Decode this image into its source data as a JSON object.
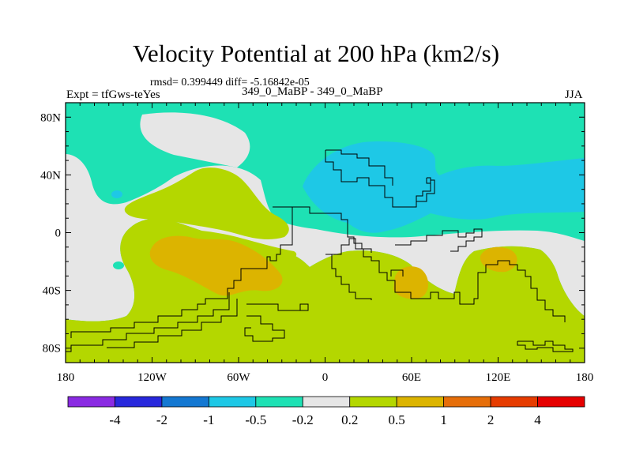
{
  "title": "Velocity Potential at 200 hPa (km2/s)",
  "stats": "rmsd= 0.399449 diff= -5.16842e-05",
  "expt": "Expt = tfGws-teYes",
  "subtitle": "349_0_MaBP - 349_0_MaBP",
  "season": "JJA",
  "chart_data": {
    "type": "heatmap",
    "variable": "Velocity Potential at 200 hPa",
    "units": "km2/s",
    "xlim": [
      -180,
      180
    ],
    "ylim": [
      -90,
      90
    ],
    "x_ticks": [
      {
        "value": -180,
        "label": "180"
      },
      {
        "value": -120,
        "label": "120W"
      },
      {
        "value": -60,
        "label": "60W"
      },
      {
        "value": 0,
        "label": "0"
      },
      {
        "value": 60,
        "label": "60E"
      },
      {
        "value": 120,
        "label": "120E"
      },
      {
        "value": 180,
        "label": "180"
      }
    ],
    "y_ticks": [
      {
        "value": 80,
        "label": "80N"
      },
      {
        "value": 40,
        "label": "40N"
      },
      {
        "value": 0,
        "label": "0"
      },
      {
        "value": -40,
        "label": "40S"
      },
      {
        "value": -80,
        "label": "80S"
      }
    ],
    "colorbar": {
      "boundaries": [
        "-4",
        "-2",
        "-1",
        "-0.5",
        "-0.2",
        "0.2",
        "0.5",
        "1",
        "2",
        "4"
      ],
      "colors": [
        "#8a2be2",
        "#2828dc",
        "#1478d2",
        "#1ec8e6",
        "#1ee1b4",
        "#e6e6e6",
        "#b4d700",
        "#dcb400",
        "#e66e0a",
        "#e63c00",
        "#e60000"
      ]
    },
    "colors": {
      "sea_ice": "#1ee1b4",
      "neg_mid": "#1ec8e6",
      "neutral": "#e6e6e6",
      "pos_low": "#b4d700",
      "pos_mid": "#dcb400"
    }
  }
}
